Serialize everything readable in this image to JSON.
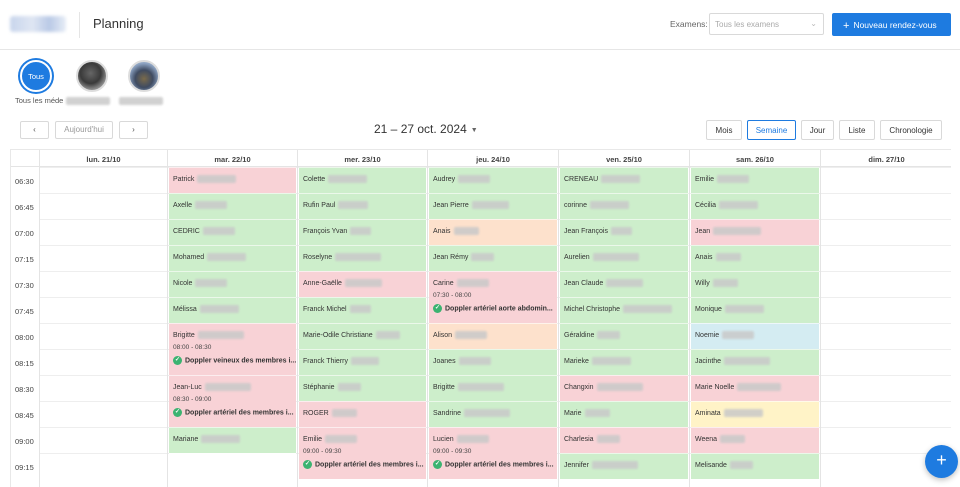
{
  "header": {
    "title": "Planning",
    "exam_label": "Examens:",
    "exam_placeholder": "Tous les examens",
    "new_button": "Nouveau rendez-vous"
  },
  "doctors": {
    "all_avatar": "Tous",
    "all_label": "Tous les méde"
  },
  "toolbar": {
    "prev": "‹",
    "today": "Aujourd'hui",
    "next": "›",
    "range": "21 – 27 oct. 2024",
    "views": [
      "Mois",
      "Semaine",
      "Jour",
      "Liste",
      "Chronologie"
    ],
    "active_view": "Semaine"
  },
  "calendar": {
    "days": [
      "lun. 21/10",
      "mar. 22/10",
      "mer. 23/10",
      "jeu. 24/10",
      "ven. 25/10",
      "sam. 26/10",
      "dim. 27/10"
    ],
    "times": [
      "06:30",
      "06:45",
      "07:00",
      "07:15",
      "07:30",
      "07:45",
      "08:00",
      "08:15",
      "08:30",
      "08:45",
      "09:00",
      "09:15"
    ],
    "colors": {
      "green": "#cdeecb",
      "red": "#f8d2d6",
      "orange": "#fde1cc",
      "yellow": "#fff3c7",
      "blue": "#d4ecf2",
      "accent": "#1e7be0"
    },
    "mar": [
      {
        "name": "Patrick",
        "color": "r"
      },
      {
        "name": "Axelle",
        "color": "g"
      },
      {
        "name": "CEDRIC",
        "color": "g"
      },
      {
        "name": "Mohamed",
        "color": "g"
      },
      {
        "name": "Nicole",
        "color": "g"
      },
      {
        "name": "Mélissa",
        "color": "g"
      },
      {
        "name": "Brigitte",
        "time": "08:00 - 08:30",
        "detail": "Doppler veineux des membres i...",
        "color": "r"
      },
      {
        "name": "Jean-Luc",
        "time": "08:30 - 09:00",
        "detail": "Doppler artériel des membres i...",
        "color": "r"
      },
      {
        "name": "Mariane",
        "color": "g"
      },
      {
        "name": "",
        "color": "w"
      }
    ],
    "mer": [
      {
        "name": "Colette",
        "color": "g"
      },
      {
        "name": "Rufin Paul",
        "color": "g"
      },
      {
        "name": "François Yvan",
        "color": "g"
      },
      {
        "name": "Roselyne",
        "color": "g"
      },
      {
        "name": "Anne-Gaëlle",
        "color": "r"
      },
      {
        "name": "Franck Michel",
        "color": "g"
      },
      {
        "name": "Marie-Odile Christiane",
        "color": "g"
      },
      {
        "name": "Franck Thierry",
        "color": "g"
      },
      {
        "name": "Stéphanie",
        "color": "g"
      },
      {
        "name": "ROGER",
        "color": "r"
      },
      {
        "name": "Emilie",
        "time": "09:00 - 09:30",
        "detail": "Doppler artériel des membres i...",
        "color": "r"
      }
    ],
    "jeu": [
      {
        "name": "Audrey",
        "color": "g"
      },
      {
        "name": "Jean Pierre",
        "color": "g"
      },
      {
        "name": "Anais",
        "color": "o"
      },
      {
        "name": "Jean Rémy",
        "color": "g"
      },
      {
        "name": "Carine",
        "time": "07:30 - 08:00",
        "detail": "Doppler artériel aorte abdomin...",
        "color": "r"
      },
      {
        "name": "Alison",
        "color": "o"
      },
      {
        "name": "Joanes",
        "color": "g"
      },
      {
        "name": "Brigitte",
        "color": "g"
      },
      {
        "name": "Sandrine",
        "color": "g"
      },
      {
        "name": "Lucien",
        "time": "09:00 - 09:30",
        "detail": "Doppler artériel des membres i...",
        "color": "r"
      }
    ],
    "ven": [
      {
        "name": "CRENEAU",
        "color": "g"
      },
      {
        "name": "corinne",
        "color": "g"
      },
      {
        "name": "Jean François",
        "color": "g"
      },
      {
        "name": "Aurelien",
        "color": "g"
      },
      {
        "name": "Jean Claude",
        "color": "g"
      },
      {
        "name": "Michel Christophe",
        "color": "g"
      },
      {
        "name": "Géraldine",
        "color": "g"
      },
      {
        "name": "Marieke",
        "color": "g"
      },
      {
        "name": "Changxin",
        "color": "r"
      },
      {
        "name": "Marie",
        "color": "g"
      },
      {
        "name": "Charlesia",
        "color": "r"
      },
      {
        "name": "Jennifer",
        "color": "g"
      }
    ],
    "sam": [
      {
        "name": "Emilie",
        "color": "g"
      },
      {
        "name": "Cécilia",
        "color": "g"
      },
      {
        "name": "Jean",
        "color": "r"
      },
      {
        "name": "Anais",
        "color": "g"
      },
      {
        "name": "Willy",
        "color": "g"
      },
      {
        "name": "Monique",
        "color": "g"
      },
      {
        "name": "Noemie",
        "color": "b"
      },
      {
        "name": "Jacinthe",
        "color": "g"
      },
      {
        "name": "Marie Noelle",
        "color": "r"
      },
      {
        "name": "Aminata",
        "color": "y"
      },
      {
        "name": "Weena",
        "color": "r"
      },
      {
        "name": "Melisande",
        "color": "g"
      }
    ]
  },
  "fab": "+"
}
